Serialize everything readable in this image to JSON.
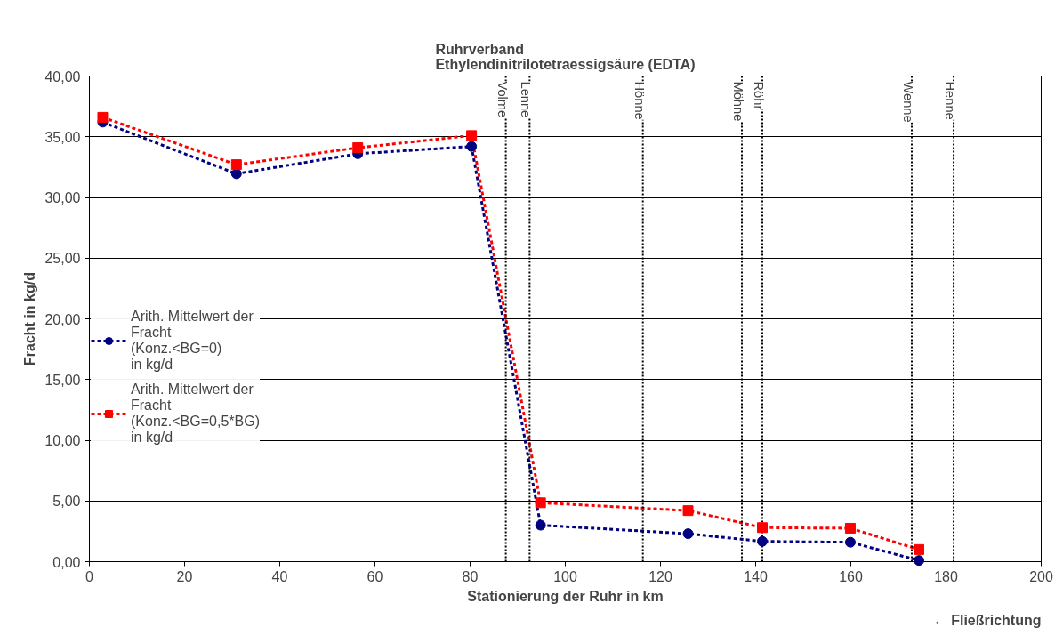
{
  "chart_data": {
    "type": "line",
    "title": "Ruhrverband\nEthylendinitrilotetraessigsäure (EDTA)",
    "xlabel": "Stationierung der Ruhr in km",
    "ylabel": "Fracht in kg/d",
    "annotations": [
      "← Fließrichtung"
    ],
    "xlim": [
      0,
      200
    ],
    "xticks": [
      0,
      20,
      40,
      60,
      80,
      100,
      120,
      140,
      160,
      180,
      200
    ],
    "ylim": [
      0,
      40
    ],
    "yticks": [
      {
        "value": 0,
        "label": "0,00"
      },
      {
        "value": 5,
        "label": "5,00"
      },
      {
        "value": 10,
        "label": "10,00"
      },
      {
        "value": 15,
        "label": "15,00"
      },
      {
        "value": 20,
        "label": "20,00"
      },
      {
        "value": 25,
        "label": "25,00"
      },
      {
        "value": 30,
        "label": "30,00"
      },
      {
        "value": 35,
        "label": "35,00"
      },
      {
        "value": 40,
        "label": "40,00"
      }
    ],
    "grid": "y",
    "legend": "left",
    "line_style": "dashed",
    "series": [
      {
        "name": "Arith. Mittelwert der\nFracht\n(Konz.<BG=0)\nin kg/d",
        "color": "#000080",
        "marker": "circle",
        "x": [
          2.8,
          30.9,
          56.4,
          80.3,
          94.8,
          125.8,
          141.4,
          159.9,
          174.3
        ],
        "values": [
          36.2,
          31.95,
          33.6,
          34.2,
          3.0,
          2.3,
          1.67,
          1.6,
          0.1
        ]
      },
      {
        "name": "Arith. Mittelwert der\nFracht\n(Konz.<BG=0,5*BG)\nin kg/d",
        "color": "#ff0000",
        "marker": "square",
        "x": [
          2.8,
          30.9,
          56.4,
          80.3,
          94.8,
          125.8,
          141.4,
          159.9,
          174.3
        ],
        "values": [
          36.6,
          32.7,
          34.1,
          35.1,
          4.85,
          4.2,
          2.8,
          2.75,
          1.0
        ]
      }
    ],
    "ref_lines": [
      {
        "axis": "x",
        "value": 87.5,
        "label": "Volme",
        "line_style": "dotted",
        "color": "#000000"
      },
      {
        "axis": "x",
        "value": 92.5,
        "label": "Lenne",
        "line_style": "dotted",
        "color": "#000000"
      },
      {
        "axis": "x",
        "value": 116.3,
        "label": "Hönne",
        "line_style": "dotted",
        "color": "#000000"
      },
      {
        "axis": "x",
        "value": 137.1,
        "label": "Möhne",
        "line_style": "dotted",
        "color": "#000000"
      },
      {
        "axis": "x",
        "value": 141.4,
        "label": "Röhr",
        "line_style": "dotted",
        "color": "#000000"
      },
      {
        "axis": "x",
        "value": 172.8,
        "label": "Wenne",
        "line_style": "dotted",
        "color": "#000000"
      },
      {
        "axis": "x",
        "value": 181.6,
        "label": "Henne",
        "line_style": "dotted",
        "color": "#000000"
      }
    ]
  }
}
